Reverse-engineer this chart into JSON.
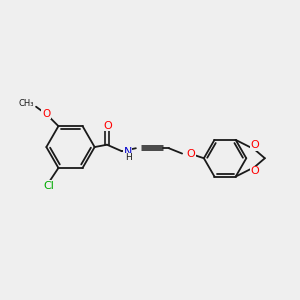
{
  "bg_color": "#efefef",
  "bond_color": "#1a1a1a",
  "atom_colors": {
    "O": "#ff0000",
    "N": "#0000cd",
    "Cl": "#00aa00",
    "C": "#1a1a1a"
  },
  "font_size": 7.0,
  "fig_size": [
    3.0,
    3.0
  ],
  "dpi": 100
}
